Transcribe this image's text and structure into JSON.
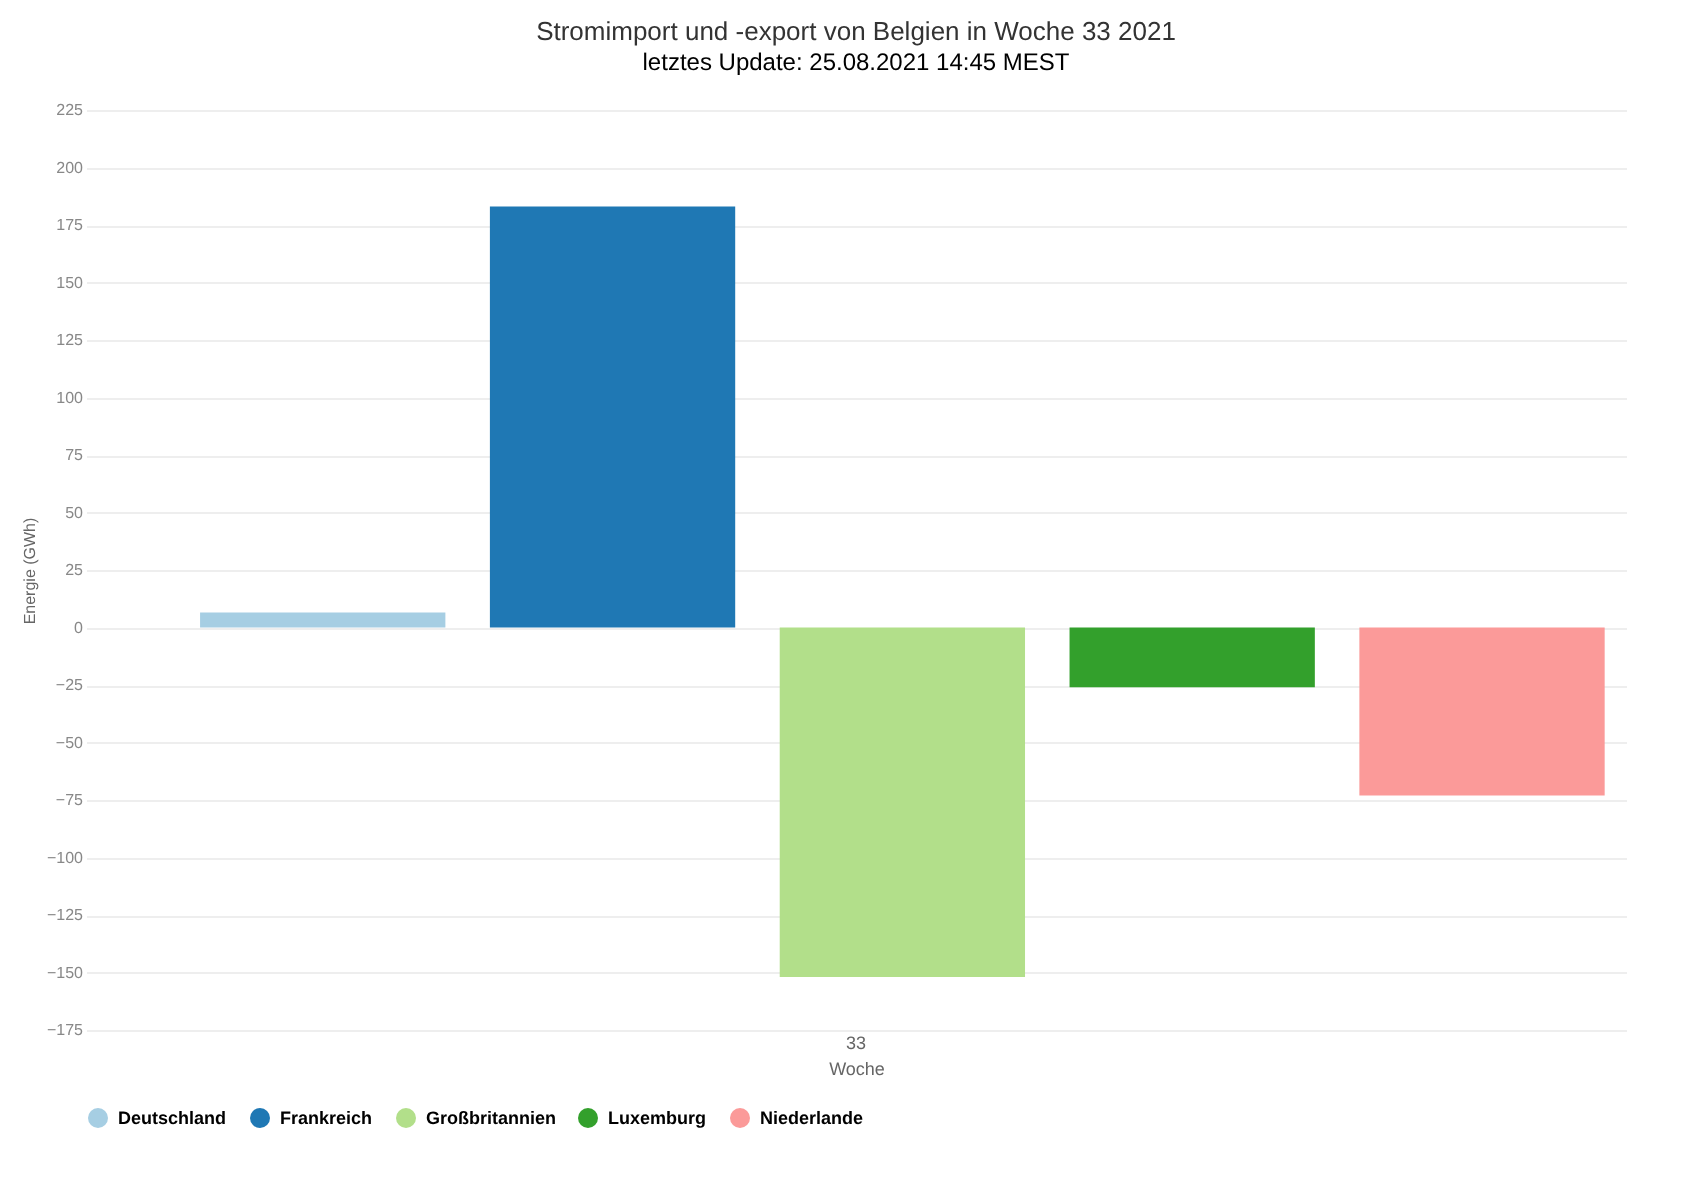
{
  "chart_data": {
    "type": "bar",
    "title": "Stromimport und -export von Belgien in Woche 33 2021",
    "xlabel": "Woche",
    "ylabel": "Energie (GWh)",
    "categories": [
      "33"
    ],
    "series": [
      {
        "name": "Deutschland",
        "color": "#a6cee3",
        "values": [
          6.5
        ]
      },
      {
        "name": "Frankreich",
        "color": "#1f78b4",
        "values": [
          183
        ]
      },
      {
        "name": "Großbritannien",
        "color": "#b2df8a",
        "values": [
          -152
        ]
      },
      {
        "name": "Luxemburg",
        "color": "#33a02c",
        "values": [
          -26
        ]
      },
      {
        "name": "Niederlande",
        "color": "#fb9a99",
        "values": [
          -73
        ]
      }
    ],
    "ylim": [
      -175,
      225
    ],
    "yticks": [
      -175,
      -150,
      -125,
      -100,
      -75,
      -50,
      -25,
      0,
      25,
      50,
      75,
      100,
      125,
      150,
      175,
      200,
      225
    ],
    "grid": "y",
    "legend": "bottom",
    "annotations": [
      "letztes Update: 25.08.2021 14:45 MEST"
    ]
  }
}
